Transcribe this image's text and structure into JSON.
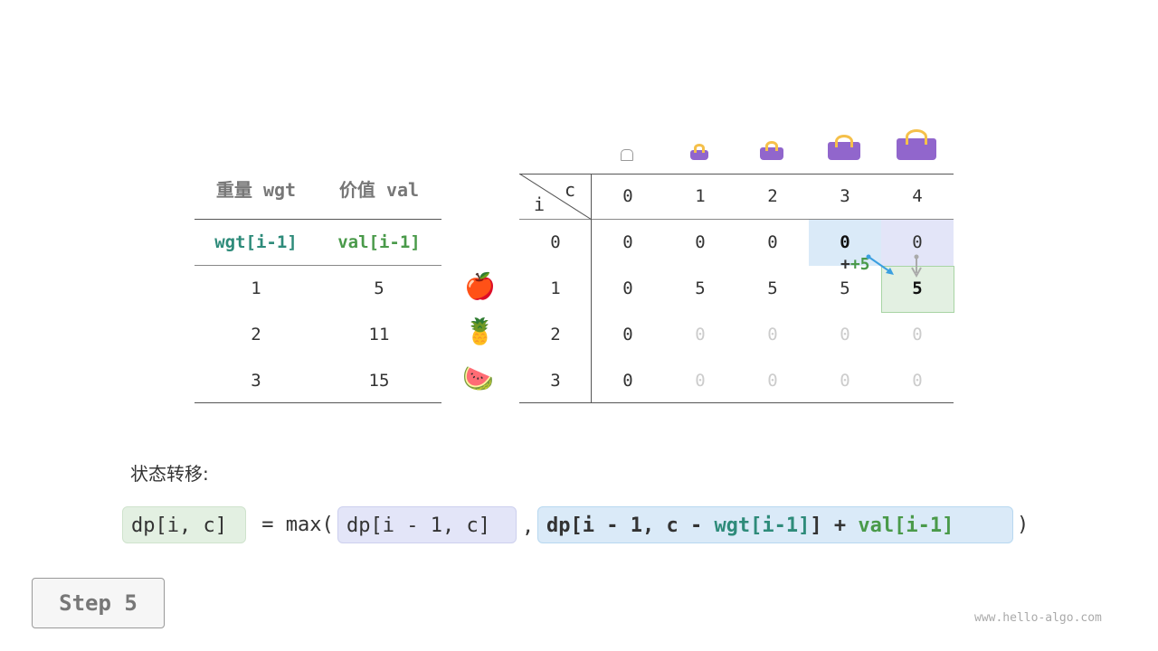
{
  "left_table": {
    "headers": [
      "重量 wgt",
      "价值 val"
    ],
    "subheaders": [
      "wgt[i-1]",
      "val[i-1]"
    ],
    "rows": [
      [
        "1",
        "5"
      ],
      [
        "2",
        "11"
      ],
      [
        "3",
        "15"
      ]
    ],
    "items": [
      "apple",
      "pineapple",
      "watermelon"
    ]
  },
  "dp_table": {
    "corner_i": "i",
    "corner_c": "c",
    "capacities": [
      "0",
      "1",
      "2",
      "3",
      "4"
    ],
    "row_labels": [
      "0",
      "1",
      "2",
      "3"
    ],
    "rows": [
      [
        "0",
        "0",
        "0",
        "0",
        "0"
      ],
      [
        "0",
        "5",
        "5",
        "5",
        "5"
      ],
      [
        "0",
        "0",
        "0",
        "0",
        "0"
      ],
      [
        "0",
        "0",
        "0",
        "0",
        "0"
      ]
    ],
    "annotation": "+5"
  },
  "formula": {
    "label": "状态转移:",
    "lhs": "dp[i, c]",
    "eq": " = max(",
    "a": "dp[i - 1, c]",
    "comma": ",",
    "b1": "dp[i - 1, c - ",
    "b_wgt": "wgt[i-1]",
    "b2": "] + ",
    "b_val": "val[i-1]",
    "close": ")"
  },
  "step_label": "Step 5",
  "watermark": "www.hello-algo.com",
  "colors": {
    "teal": "#2e8b7a",
    "green": "#4a9a4a",
    "bag": "#9166cc",
    "blue_hl": "#daeaf8",
    "purple_hl": "#e3e5f8",
    "green_hl": "#e3f0e2"
  }
}
